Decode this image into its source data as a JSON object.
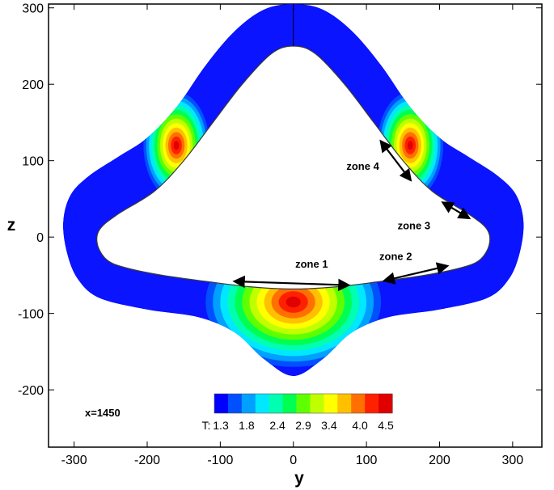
{
  "chart_data": {
    "type": "heatmap",
    "title": "",
    "xlabel": "y",
    "ylabel": "z",
    "xlim": [
      -335,
      340
    ],
    "ylim": [
      -275,
      305
    ],
    "xticks": [
      -300,
      -200,
      -100,
      0,
      100,
      200,
      300
    ],
    "yticks": [
      -200,
      -100,
      0,
      100,
      200,
      300
    ],
    "tick_labels_x": [
      "-300",
      "-200",
      "-100",
      "0",
      "100",
      "200",
      "300"
    ],
    "tick_labels_y": [
      "-200",
      "-100",
      "0",
      "100",
      "200",
      "300"
    ],
    "grid": false,
    "colorbar": {
      "prefix": "T:",
      "min": 1.3,
      "max": 4.5,
      "tick_values": [
        1.3,
        1.8,
        2.4,
        2.9,
        3.4,
        4.0,
        4.5
      ],
      "tick_labels": [
        "1.3",
        "1.8",
        "2.4",
        "2.9",
        "3.4",
        "4.0",
        "4.5"
      ],
      "placement": "bottom-center"
    },
    "annotations": {
      "station": "x=1450",
      "zones": [
        {
          "label": "zone 1",
          "text_at": [
            25,
            -40
          ],
          "arrow_from": [
            -80,
            -58
          ],
          "arrow_to": [
            75,
            -63
          ]
        },
        {
          "label": "zone 2",
          "text_at": [
            140,
            -30
          ],
          "arrow_from": [
            125,
            -57
          ],
          "arrow_to": [
            210,
            -38
          ]
        },
        {
          "label": "zone 3",
          "text_at": [
            165,
            10
          ],
          "arrow_from": [
            205,
            45
          ],
          "arrow_to": [
            240,
            25
          ]
        },
        {
          "label": "zone 4",
          "text_at": [
            95,
            88
          ],
          "arrow_from": [
            120,
            125
          ],
          "arrow_to": [
            160,
            75
          ]
        }
      ]
    },
    "field": {
      "outer_boundary": [
        [
          0,
          305
        ],
        [
          40,
          298
        ],
        [
          80,
          270
        ],
        [
          120,
          225
        ],
        [
          160,
          170
        ],
        [
          200,
          130
        ],
        [
          240,
          105
        ],
        [
          280,
          80
        ],
        [
          305,
          55
        ],
        [
          315,
          20
        ],
        [
          310,
          -20
        ],
        [
          295,
          -55
        ],
        [
          265,
          -80
        ],
        [
          200,
          -95
        ],
        [
          130,
          -105
        ],
        [
          80,
          -125
        ],
        [
          40,
          -160
        ],
        [
          0,
          -182
        ],
        [
          -40,
          -160
        ],
        [
          -80,
          -125
        ],
        [
          -130,
          -105
        ],
        [
          -200,
          -95
        ],
        [
          -265,
          -80
        ],
        [
          -295,
          -55
        ],
        [
          -310,
          -20
        ],
        [
          -315,
          20
        ],
        [
          -305,
          55
        ],
        [
          -280,
          80
        ],
        [
          -240,
          105
        ],
        [
          -200,
          130
        ],
        [
          -160,
          170
        ],
        [
          -120,
          225
        ],
        [
          -80,
          270
        ],
        [
          -40,
          298
        ]
      ],
      "inner_boundary": [
        [
          0,
          250
        ],
        [
          30,
          240
        ],
        [
          70,
          200
        ],
        [
          110,
          150
        ],
        [
          150,
          100
        ],
        [
          190,
          60
        ],
        [
          240,
          30
        ],
        [
          265,
          10
        ],
        [
          268,
          -10
        ],
        [
          255,
          -30
        ],
        [
          230,
          -40
        ],
        [
          180,
          -50
        ],
        [
          120,
          -58
        ],
        [
          60,
          -65
        ],
        [
          0,
          -68
        ],
        [
          -60,
          -65
        ],
        [
          -120,
          -58
        ],
        [
          -180,
          -50
        ],
        [
          -230,
          -40
        ],
        [
          -255,
          -30
        ],
        [
          -268,
          -10
        ],
        [
          -265,
          10
        ],
        [
          -240,
          30
        ],
        [
          -190,
          60
        ],
        [
          -150,
          100
        ],
        [
          -110,
          150
        ],
        [
          -70,
          200
        ],
        [
          -30,
          240
        ]
      ],
      "hot_regions": [
        {
          "center": [
            0,
            -85
          ],
          "radii": [
            120,
            85
          ],
          "peak": 4.5
        },
        {
          "center": [
            -160,
            120
          ],
          "radii": [
            45,
            70
          ],
          "peak": 4.5
        },
        {
          "center": [
            160,
            120
          ],
          "radii": [
            45,
            70
          ],
          "peak": 4.5
        }
      ],
      "background_value": 1.3
    }
  },
  "colors": {
    "scale": [
      "#0000ff",
      "#0050ff",
      "#00a0ff",
      "#00e8ff",
      "#00ffb0",
      "#00ff50",
      "#60ff00",
      "#c0ff00",
      "#ffff00",
      "#ffc000",
      "#ff7000",
      "#ff2000",
      "#e00000"
    ],
    "background_field": "#0a14ff",
    "wall_line": "#1a1a1a",
    "arrow": "#000000"
  }
}
